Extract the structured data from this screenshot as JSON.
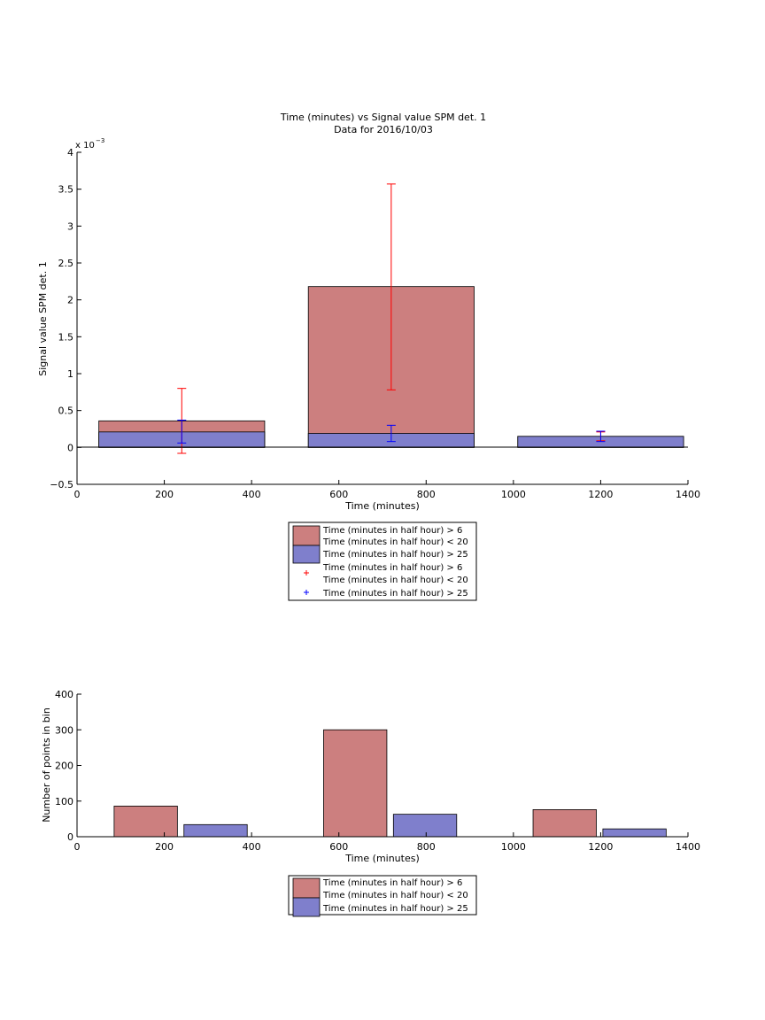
{
  "chart_data": [
    {
      "type": "bar",
      "title": "Time (minutes) vs Signal value SPM det. 1",
      "subtitle": "Data for 2016/10/03",
      "xlabel": "Time (minutes)",
      "ylabel": "Signal value SPM det. 1",
      "y_multiplier": "x 10",
      "y_exponent": "−3",
      "xlim": [
        0,
        1400
      ],
      "ylim": [
        -0.5,
        4
      ],
      "xticks": [
        "0",
        "200",
        "400",
        "600",
        "800",
        "1000",
        "1200",
        "1400"
      ],
      "yticks": [
        "−0.5",
        "0",
        "0.5",
        "1",
        "1.5",
        "2",
        "2.5",
        "3",
        "3.5",
        "4"
      ],
      "bar_edges": [
        [
          50,
          430
        ],
        [
          530,
          910
        ],
        [
          1010,
          1390
        ]
      ],
      "series": [
        {
          "name": "Time (minutes in half hour) > 6\nTime (minutes in half hour) < 20",
          "color": "#cc7f7f",
          "values": [
            0.36,
            2.18,
            0.15
          ],
          "error_x": [
            240,
            720,
            1200
          ],
          "error_low": [
            -0.08,
            0.78,
            0.09
          ],
          "error_high": [
            0.8,
            3.57,
            0.21
          ],
          "error_color": "#ff0000"
        },
        {
          "name": "Time (minutes in half hour) > 25",
          "color": "#7f7fcc",
          "values": [
            0.21,
            0.19,
            0.15
          ],
          "error_x": [
            240,
            720,
            1200
          ],
          "error_low": [
            0.06,
            0.08,
            0.08
          ],
          "error_high": [
            0.37,
            0.3,
            0.22
          ],
          "error_color": "#0000ff"
        }
      ],
      "legend": {
        "placement": "below",
        "entries": [
          {
            "label": "Time (minutes in half hour) > 6",
            "label2": "Time (minutes in half hour) < 20",
            "kind": "patch",
            "color": "#cc7f7f"
          },
          {
            "label": "Time (minutes in half hour) > 25",
            "kind": "patch",
            "color": "#7f7fcc"
          },
          {
            "label": "Time (minutes in half hour) > 6",
            "label2": "Time (minutes in half hour) < 20",
            "kind": "marker",
            "color": "#ff0000"
          },
          {
            "label": "Time (minutes in half hour) > 25",
            "kind": "marker",
            "color": "#0000ff"
          }
        ]
      }
    },
    {
      "type": "bar",
      "title": "",
      "xlabel": "Time (minutes)",
      "ylabel": "Number of points in bin",
      "xlim": [
        0,
        1400
      ],
      "ylim": [
        0,
        400
      ],
      "xticks": [
        "0",
        "200",
        "400",
        "600",
        "800",
        "1000",
        "1200",
        "1400"
      ],
      "yticks": [
        "0",
        "100",
        "200",
        "300",
        "400"
      ],
      "series": [
        {
          "name": "Time (minutes in half hour) > 6\nTime (minutes in half hour) < 20",
          "color": "#cc7f7f",
          "bar_edges": [
            [
              85,
              230
            ],
            [
              565,
              710
            ],
            [
              1045,
              1190
            ]
          ],
          "values": [
            86,
            300,
            76
          ]
        },
        {
          "name": "Time (minutes in half hour) > 25",
          "color": "#7f7fcc",
          "bar_edges": [
            [
              245,
              390
            ],
            [
              725,
              870
            ],
            [
              1205,
              1350
            ]
          ],
          "values": [
            34,
            63,
            22
          ]
        }
      ],
      "legend": {
        "placement": "below",
        "entries": [
          {
            "label": "Time (minutes in half hour) > 6",
            "label2": "Time (minutes in half hour) < 20",
            "kind": "patch",
            "color": "#cc7f7f"
          },
          {
            "label": "Time (minutes in half hour) > 25",
            "kind": "patch",
            "color": "#7f7fcc"
          }
        ]
      }
    }
  ]
}
